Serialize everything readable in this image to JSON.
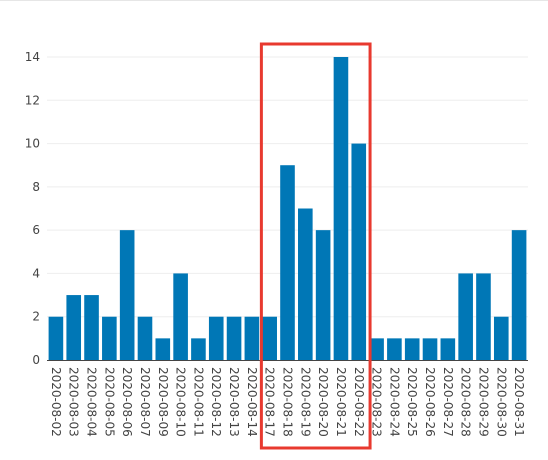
{
  "colors": {
    "bar": "#0077b6",
    "grid": "#eeeeee",
    "axis": "#444444",
    "highlight": "#e8392f"
  },
  "chart_data": {
    "type": "bar",
    "categories": [
      "2020-08-02",
      "2020-08-03",
      "2020-08-04",
      "2020-08-05",
      "2020-08-06",
      "2020-08-07",
      "2020-08-09",
      "2020-08-10",
      "2020-08-11",
      "2020-08-12",
      "2020-08-13",
      "2020-08-14",
      "2020-08-17",
      "2020-08-18",
      "2020-08-19",
      "2020-08-20",
      "2020-08-21",
      "2020-08-22",
      "2020-08-23",
      "2020-08-24",
      "2020-08-25",
      "2020-08-26",
      "2020-08-27",
      "2020-08-28",
      "2020-08-29",
      "2020-08-30",
      "2020-08-31"
    ],
    "values": [
      2,
      3,
      3,
      2,
      6,
      2,
      1,
      4,
      1,
      2,
      2,
      2,
      2,
      9,
      7,
      6,
      14,
      10,
      1,
      1,
      1,
      1,
      1,
      4,
      4,
      2,
      6
    ],
    "title": "",
    "xlabel": "",
    "ylabel": "",
    "ylim": [
      0,
      14
    ],
    "yticks": [
      0,
      2,
      4,
      6,
      8,
      10,
      12,
      14
    ],
    "grid": true,
    "legend": "none",
    "highlight": {
      "from": "2020-08-17",
      "to": "2020-08-22"
    }
  }
}
